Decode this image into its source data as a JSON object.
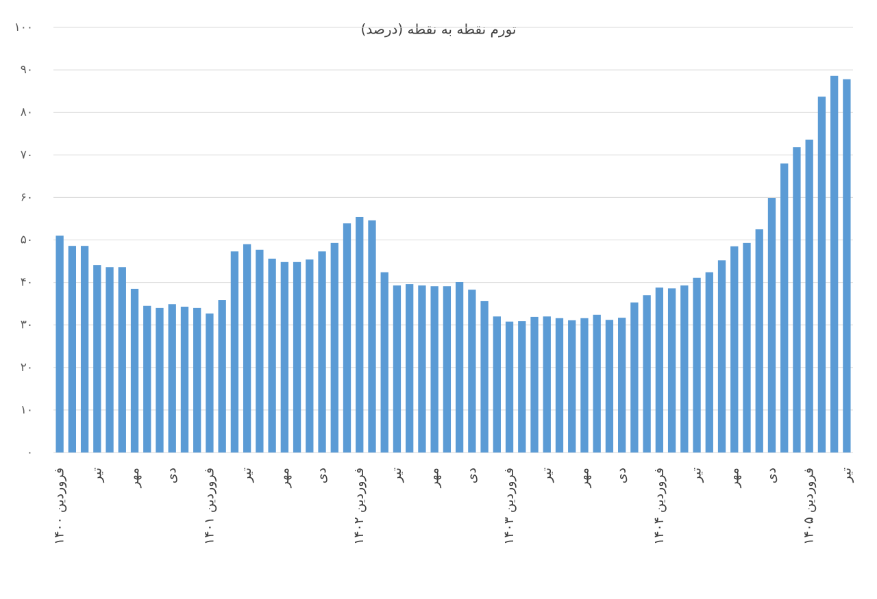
{
  "chart_data": {
    "type": "bar",
    "title": "تورم نقطه به نقطه (درصد)",
    "categories": [
      "فروردین ۱۴۰۰",
      null,
      null,
      "تیر",
      null,
      null,
      "مهر",
      null,
      null,
      "دی",
      null,
      null,
      "فروردین ۱۴۰۱",
      null,
      null,
      "تیر",
      null,
      null,
      "مهر",
      null,
      null,
      "دی",
      null,
      null,
      "فروردین ۱۴۰۲",
      null,
      null,
      "تیر",
      null,
      null,
      "مهر",
      null,
      null,
      "دی",
      null,
      null,
      "فروردین ۱۴۰۳",
      null,
      null,
      "تیر",
      null,
      null,
      "مهر",
      null,
      null,
      "دی",
      null,
      null,
      "فروردین ۱۴۰۴",
      null,
      null,
      "تیر",
      null,
      null,
      "مهر",
      null,
      null,
      "دی",
      null,
      null,
      "فروردین ۱۴۰۵",
      null,
      null,
      "تیر"
    ],
    "values": [
      51.0,
      48.6,
      48.6,
      44.1,
      43.6,
      43.6,
      38.5,
      34.5,
      34.0,
      34.9,
      34.3,
      34.0,
      32.7,
      35.9,
      47.3,
      49.0,
      47.7,
      45.6,
      44.8,
      44.8,
      45.4,
      47.3,
      49.3,
      53.9,
      55.4,
      54.6,
      42.4,
      39.3,
      39.6,
      39.3,
      39.1,
      39.1,
      40.1,
      38.3,
      35.6,
      32.0,
      30.8,
      30.9,
      31.9,
      32.0,
      31.6,
      31.1,
      31.6,
      32.4,
      31.2,
      31.7,
      35.3,
      37.0,
      38.8,
      38.6,
      39.3,
      41.1,
      42.4,
      45.2,
      48.5,
      49.3,
      52.5,
      59.9,
      68.0,
      71.8,
      73.6,
      83.7,
      88.6,
      87.8
    ],
    "color": "#5b9bd5",
    "ylim": [
      0,
      100
    ],
    "yticks": [
      {
        "value": 0,
        "label": "۰"
      },
      {
        "value": 10,
        "label": "۱۰"
      },
      {
        "value": 20,
        "label": "۲۰"
      },
      {
        "value": 30,
        "label": "۳۰"
      },
      {
        "value": 40,
        "label": "۴۰"
      },
      {
        "value": 50,
        "label": "۵۰"
      },
      {
        "value": 60,
        "label": "۶۰"
      },
      {
        "value": 70,
        "label": "۷۰"
      },
      {
        "value": 80,
        "label": "۸۰"
      },
      {
        "value": 90,
        "label": "۹۰"
      },
      {
        "value": 100,
        "label": "۱۰۰"
      }
    ],
    "grid": true
  }
}
